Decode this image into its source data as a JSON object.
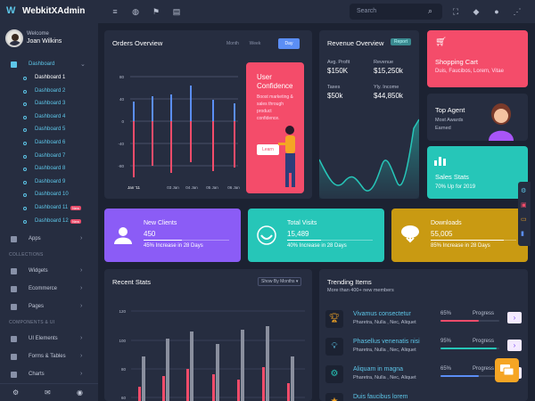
{
  "app": {
    "name": "WebkitXAdmin",
    "logo_glyph": "W"
  },
  "user": {
    "welcome": "Welcome",
    "name": "Joan Wilkins"
  },
  "sidebar": {
    "dashboard_label": "Dashboard",
    "subitems": [
      {
        "label": "Dashboard 1"
      },
      {
        "label": "Dashboard 2"
      },
      {
        "label": "Dashboard 3"
      },
      {
        "label": "Dashboard 4"
      },
      {
        "label": "Dashboard 5"
      },
      {
        "label": "Dashboard 6"
      },
      {
        "label": "Dashboard 7"
      },
      {
        "label": "Dashboard 8"
      },
      {
        "label": "Dashboard 9"
      },
      {
        "label": "Dashboard 10"
      },
      {
        "label": "Dashboard 11",
        "badge": "New"
      },
      {
        "label": "Dashboard 12",
        "badge": "New"
      }
    ],
    "apps_label": "Apps",
    "section_collections": "COLLECTIONS",
    "widgets_label": "Widgets",
    "ecommerce_label": "Ecommerce",
    "pages_label": "Pages",
    "section_components": "COMPONENTS & UI",
    "ui_elements_label": "UI Elements",
    "forms_tables_label": "Forms & Tables",
    "charts_label": "Charts"
  },
  "topbar": {
    "search_placeholder": "Search"
  },
  "orders": {
    "title": "Orders Overview",
    "tabs": [
      "Month",
      "Week",
      "Day"
    ],
    "active_tab": "Day",
    "ytick_labels": [
      "80",
      "40",
      "0",
      "-40",
      "-80"
    ],
    "xtick_labels": [
      "Jan '11",
      "03 Jan",
      "04 Jan",
      "05 Jan",
      "06 Jan"
    ]
  },
  "user_confidence": {
    "title_line1": "User",
    "title_line2": "Confidence",
    "desc": "Boost marketing & sales through product confidence.",
    "button": "Learn"
  },
  "revenue": {
    "title": "Revenue Overview",
    "tag": "Report",
    "stats": [
      {
        "label": "Avg. Profit",
        "value": "$150K"
      },
      {
        "label": "Revenue",
        "value": "$15,250k"
      },
      {
        "label": "Taxes",
        "value": "$50k"
      },
      {
        "label": "Yly. Income",
        "value": "$44,850k"
      }
    ]
  },
  "shopping": {
    "title": "Shopping Cart",
    "desc": "Duis, Faucibos, Lorem, Vitae"
  },
  "agent": {
    "title": "Top Agent",
    "line1": "Most Awards",
    "line2": "Earned"
  },
  "sales": {
    "title": "Sales Stats",
    "desc": "70% Up for 2019"
  },
  "stat_cards": [
    {
      "title": "New Clients",
      "value": "450",
      "foot": "45% Increase in 28 Days",
      "progress": 0.45
    },
    {
      "title": "Total Visits",
      "value": "15,489",
      "foot": "40% Increase in 28 Days",
      "progress": 0.4
    },
    {
      "title": "Downloads",
      "value": "55,005",
      "foot": "85% Increase in 28 Days",
      "progress": 0.85
    }
  ],
  "recent_stats": {
    "title": "Recent Stats",
    "dropdown": "Show By Months ▾",
    "ytick_labels": [
      "120",
      "100",
      "80",
      "60",
      "40"
    ]
  },
  "trending": {
    "title": "Trending Items",
    "subtitle": "More than 400+ new members",
    "items": [
      {
        "name": "Vivamus consectetur",
        "sub": "Pharetra, Nulla , Nec, Aliquet",
        "pct": "65%",
        "prog_label": "Progress",
        "value": 0.65,
        "color": "#f44c6a"
      },
      {
        "name": "Phasellus venenatis nisi",
        "sub": "Pharetra, Nulla , Nec, Aliquet",
        "pct": "95%",
        "prog_label": "Progress",
        "value": 0.95,
        "color": "#26c6b8"
      },
      {
        "name": "Aliquam in magna",
        "sub": "Pharetra, Nulla , Nec, Aliquet",
        "pct": "65%",
        "prog_label": "Progress",
        "value": 0.65,
        "color": "#5b8ef5"
      },
      {
        "name": "Duis faucibus lorem",
        "sub": "",
        "pct": "",
        "prog_label": "",
        "value": 0,
        "color": "#f5a524"
      }
    ]
  },
  "colors": {
    "accent_blue": "#5b8ef5",
    "accent_red": "#f44c6a",
    "accent_teal": "#26c6b8",
    "accent_purple": "#8b5cf6",
    "accent_gold": "#c99a12"
  }
}
